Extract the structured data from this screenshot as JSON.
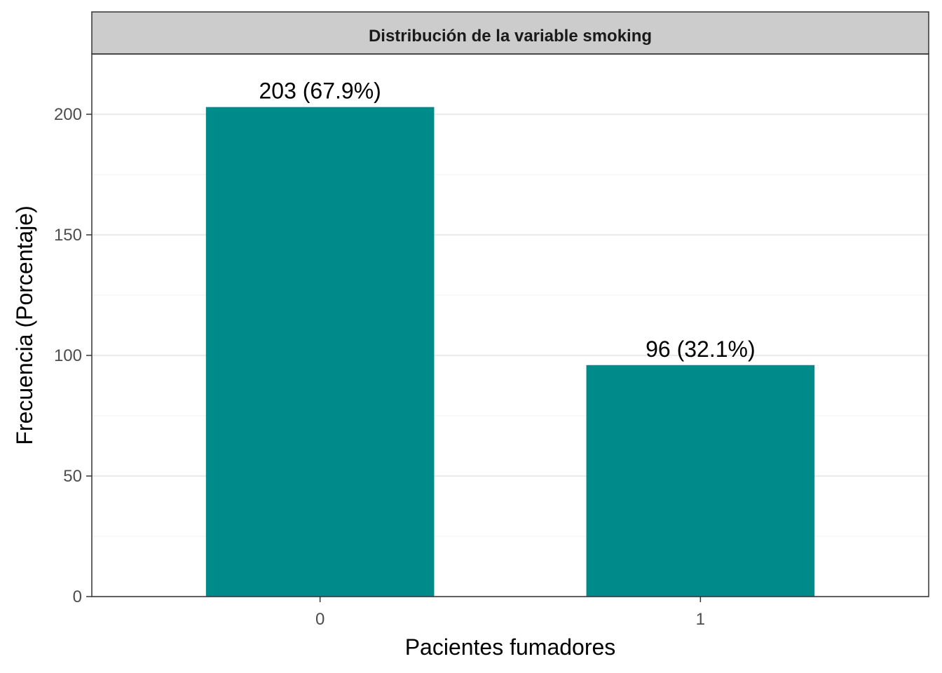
{
  "chart_data": {
    "type": "bar",
    "title": "Distribución de la variable smoking",
    "xlabel": "Pacientes fumadores",
    "ylabel": "Frecuencia (Porcentaje)",
    "categories": [
      "0",
      "1"
    ],
    "values": [
      203,
      96
    ],
    "data_labels": [
      "203 (67.9%)",
      "96 (32.1%)"
    ],
    "ylim": [
      0,
      225
    ],
    "yticks": [
      0,
      50,
      100,
      150,
      200
    ],
    "ytick_labels": [
      "0",
      "50",
      "100",
      "150",
      "200"
    ],
    "grid": true,
    "legend": "none",
    "colors": {
      "bar": "#008B8B",
      "strip": "#cccccc",
      "grid_major": "#ebebeb",
      "grid_minor": "#f5f5f5",
      "border": "#333333"
    }
  }
}
